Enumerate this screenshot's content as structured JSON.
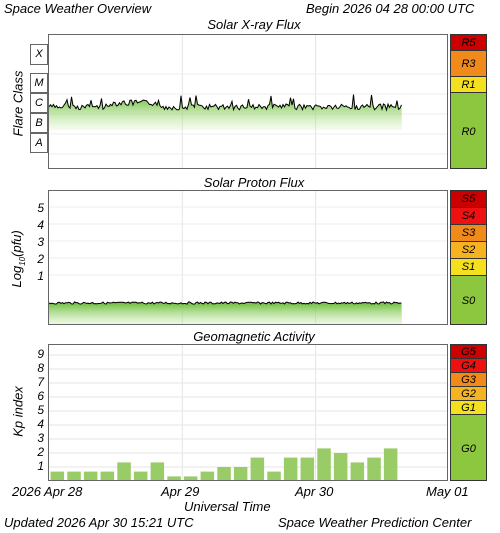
{
  "header": {
    "title": "Space Weather Overview",
    "begin": "Begin 2026 04 28 00:00 UTC"
  },
  "footer": {
    "updated": "Updated 2026 Apr 30 15:21 UTC",
    "center": "Space Weather Prediction Center"
  },
  "x_axis": {
    "label": "Universal Time",
    "ticks": [
      "2026 Apr 28",
      "Apr 29",
      "Apr 30",
      "May 01"
    ]
  },
  "xray": {
    "title": "Solar X-ray Flux",
    "ylabel": "Flare Class",
    "classes": [
      "X",
      "M",
      "C",
      "B",
      "A"
    ],
    "scale": [
      "R5",
      "R3",
      "R1",
      "R0"
    ]
  },
  "proton": {
    "title": "Solar Proton Flux",
    "ylabel": "Log10(pfu)",
    "ylabel_main": "Log",
    "ylabel_sub": "10",
    "ylabel_tail": "(pfu)",
    "ticks": [
      "5",
      "4",
      "3",
      "2",
      "1"
    ],
    "scale": [
      "S5",
      "S4",
      "S3",
      "S2",
      "S1",
      "S0"
    ]
  },
  "geomag": {
    "title": "Geomagnetic Activity",
    "ylabel": "Kp index",
    "ticks": [
      "9",
      "8",
      "7",
      "6",
      "5",
      "4",
      "3",
      "2",
      "1"
    ],
    "scale": [
      "G5",
      "G4",
      "G3",
      "G2",
      "G1",
      "G0"
    ]
  },
  "colors": {
    "extreme": "#cc0000",
    "severe": "#ee1111",
    "strong": "#f08a1a",
    "moderate": "#f5b321",
    "minor": "#f5e020",
    "quiet": "#8dc63f",
    "bar": "#99cc66"
  },
  "chart_data": [
    {
      "type": "line",
      "title": "Solar X-ray Flux",
      "ylabel": "Flare Class",
      "xlabel": "Universal Time",
      "x_range": [
        "2026-04-28 00:00",
        "2026-05-01 00:00"
      ],
      "note_level": "flux fluctuating between upper B and low C class throughout",
      "y_ticks": [
        "A",
        "B",
        "C",
        "M",
        "X"
      ]
    },
    {
      "type": "line",
      "title": "Solar Proton Flux",
      "ylabel": "Log10(pfu)",
      "xlabel": "Universal Time",
      "y_ticks": [
        1,
        2,
        3,
        4,
        5
      ],
      "x_range": [
        "2026-04-28 00:00",
        "2026-05-01 00:00"
      ]
    },
    {
      "type": "bar",
      "title": "Geomagnetic Activity",
      "ylabel": "Kp index",
      "xlabel": "Universal Time",
      "ylim": [
        0,
        9
      ],
      "x": [
        "04-28 00",
        "04-28 03",
        "04-28 06",
        "04-28 09",
        "04-28 12",
        "04-28 15",
        "04-28 18",
        "04-28 21",
        "04-29 00",
        "04-29 03",
        "04-29 06",
        "04-29 09",
        "04-29 12",
        "04-29 15",
        "04-29 18",
        "04-29 21",
        "04-30 00",
        "04-30 03",
        "04-30 06",
        "04-30 09",
        "04-30 12"
      ],
      "values": [
        0.67,
        0.67,
        0.67,
        0.67,
        1.33,
        0.67,
        1.33,
        0.33,
        0.33,
        0.67,
        1.0,
        1.0,
        1.67,
        0.67,
        1.67,
        1.67,
        2.33,
        2.0,
        1.33,
        1.67,
        2.33
      ]
    }
  ]
}
